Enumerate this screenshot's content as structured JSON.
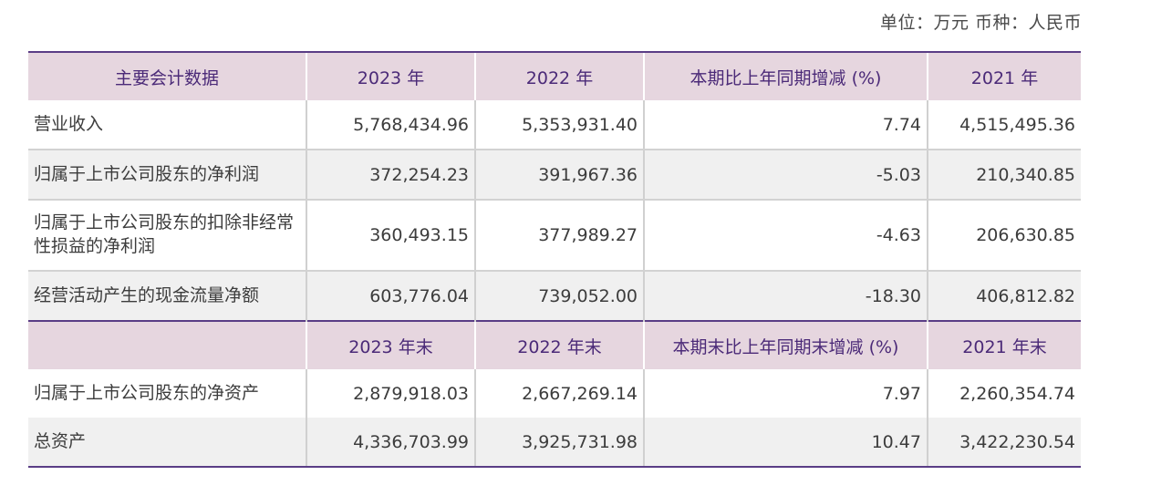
{
  "unit_note": "单位：万元 币种：人民币",
  "section1": {
    "headers": [
      "主要会计数据",
      "2023 年",
      "2022 年",
      "本期比上年同期增减 (%)",
      "2021 年"
    ],
    "rows": [
      {
        "label": "营业收入",
        "y2023": "5,768,434.96",
        "y2022": "5,353,931.40",
        "change": "7.74",
        "y2021": "4,515,495.36"
      },
      {
        "label": "归属于上市公司股东的净利润",
        "y2023": "372,254.23",
        "y2022": "391,967.36",
        "change": "-5.03",
        "y2021": "210,340.85"
      },
      {
        "label": "归属于上市公司股东的扣除非经常性损益的净利润",
        "y2023": "360,493.15",
        "y2022": "377,989.27",
        "change": "-4.63",
        "y2021": "206,630.85"
      },
      {
        "label": "经营活动产生的现金流量净额",
        "y2023": "603,776.04",
        "y2022": "739,052.00",
        "change": "-18.30",
        "y2021": "406,812.82"
      }
    ]
  },
  "section2": {
    "headers": [
      "",
      "2023 年末",
      "2022 年末",
      "本期末比上年同期末增减 (%)",
      "2021 年末"
    ],
    "rows": [
      {
        "label": "归属于上市公司股东的净资产",
        "y2023": "2,879,918.03",
        "y2022": "2,667,269.14",
        "change": "7.97",
        "y2021": "2,260,354.74"
      },
      {
        "label": "总资产",
        "y2023": "4,336,703.99",
        "y2022": "3,925,731.98",
        "change": "10.47",
        "y2021": "3,422,230.54"
      }
    ]
  },
  "colors": {
    "header_bg": "#e6d6df",
    "header_text": "#4b2a78",
    "rule": "#5a3d86",
    "alt_row": "#f0f0f0"
  }
}
